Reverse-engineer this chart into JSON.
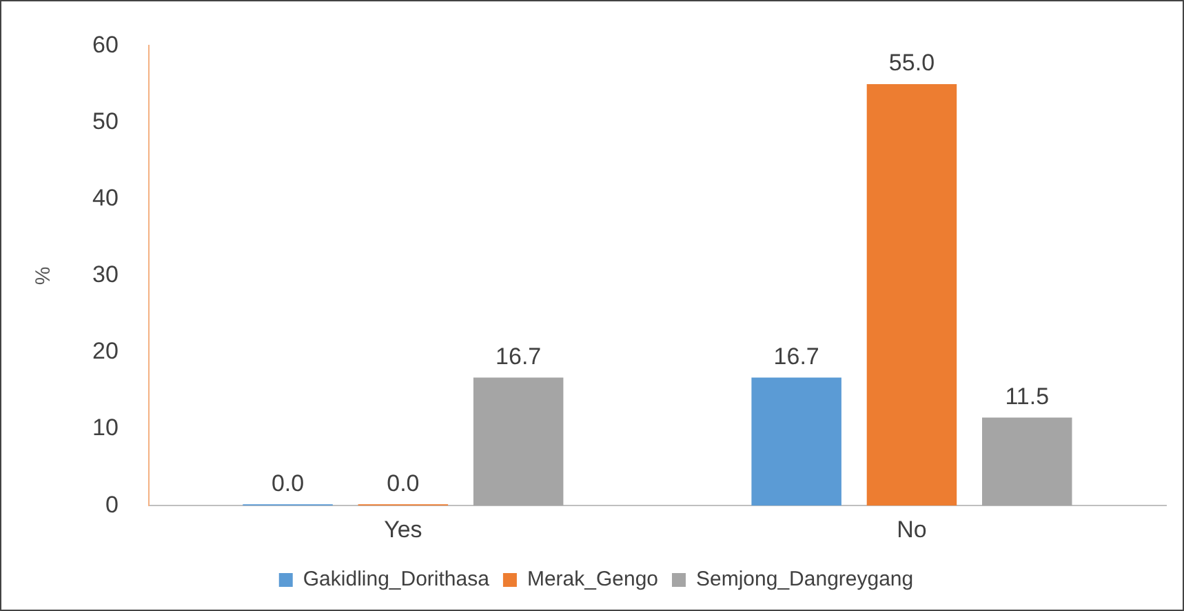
{
  "chart_data": {
    "type": "bar",
    "ylabel": "%",
    "categories": [
      "Yes",
      "No"
    ],
    "series": [
      {
        "name": "Gakidling_Dorithasa",
        "color": "#5b9bd5",
        "values": [
          0.0,
          16.7
        ],
        "value_labels": [
          "0.0",
          "16.7"
        ]
      },
      {
        "name": "Merak_Gengo",
        "color": "#ed7d31",
        "values": [
          0.0,
          55.0
        ],
        "value_labels": [
          "0.0",
          "55.0"
        ]
      },
      {
        "name": "Semjong_Dangreygang",
        "color": "#a5a5a5",
        "values": [
          16.7,
          11.5
        ],
        "value_labels": [
          "16.7",
          "11.5"
        ]
      }
    ],
    "ylim": [
      0,
      60
    ],
    "yticks": [
      0,
      10,
      20,
      30,
      40,
      50,
      60
    ],
    "grid": false,
    "legend": "bottom"
  }
}
